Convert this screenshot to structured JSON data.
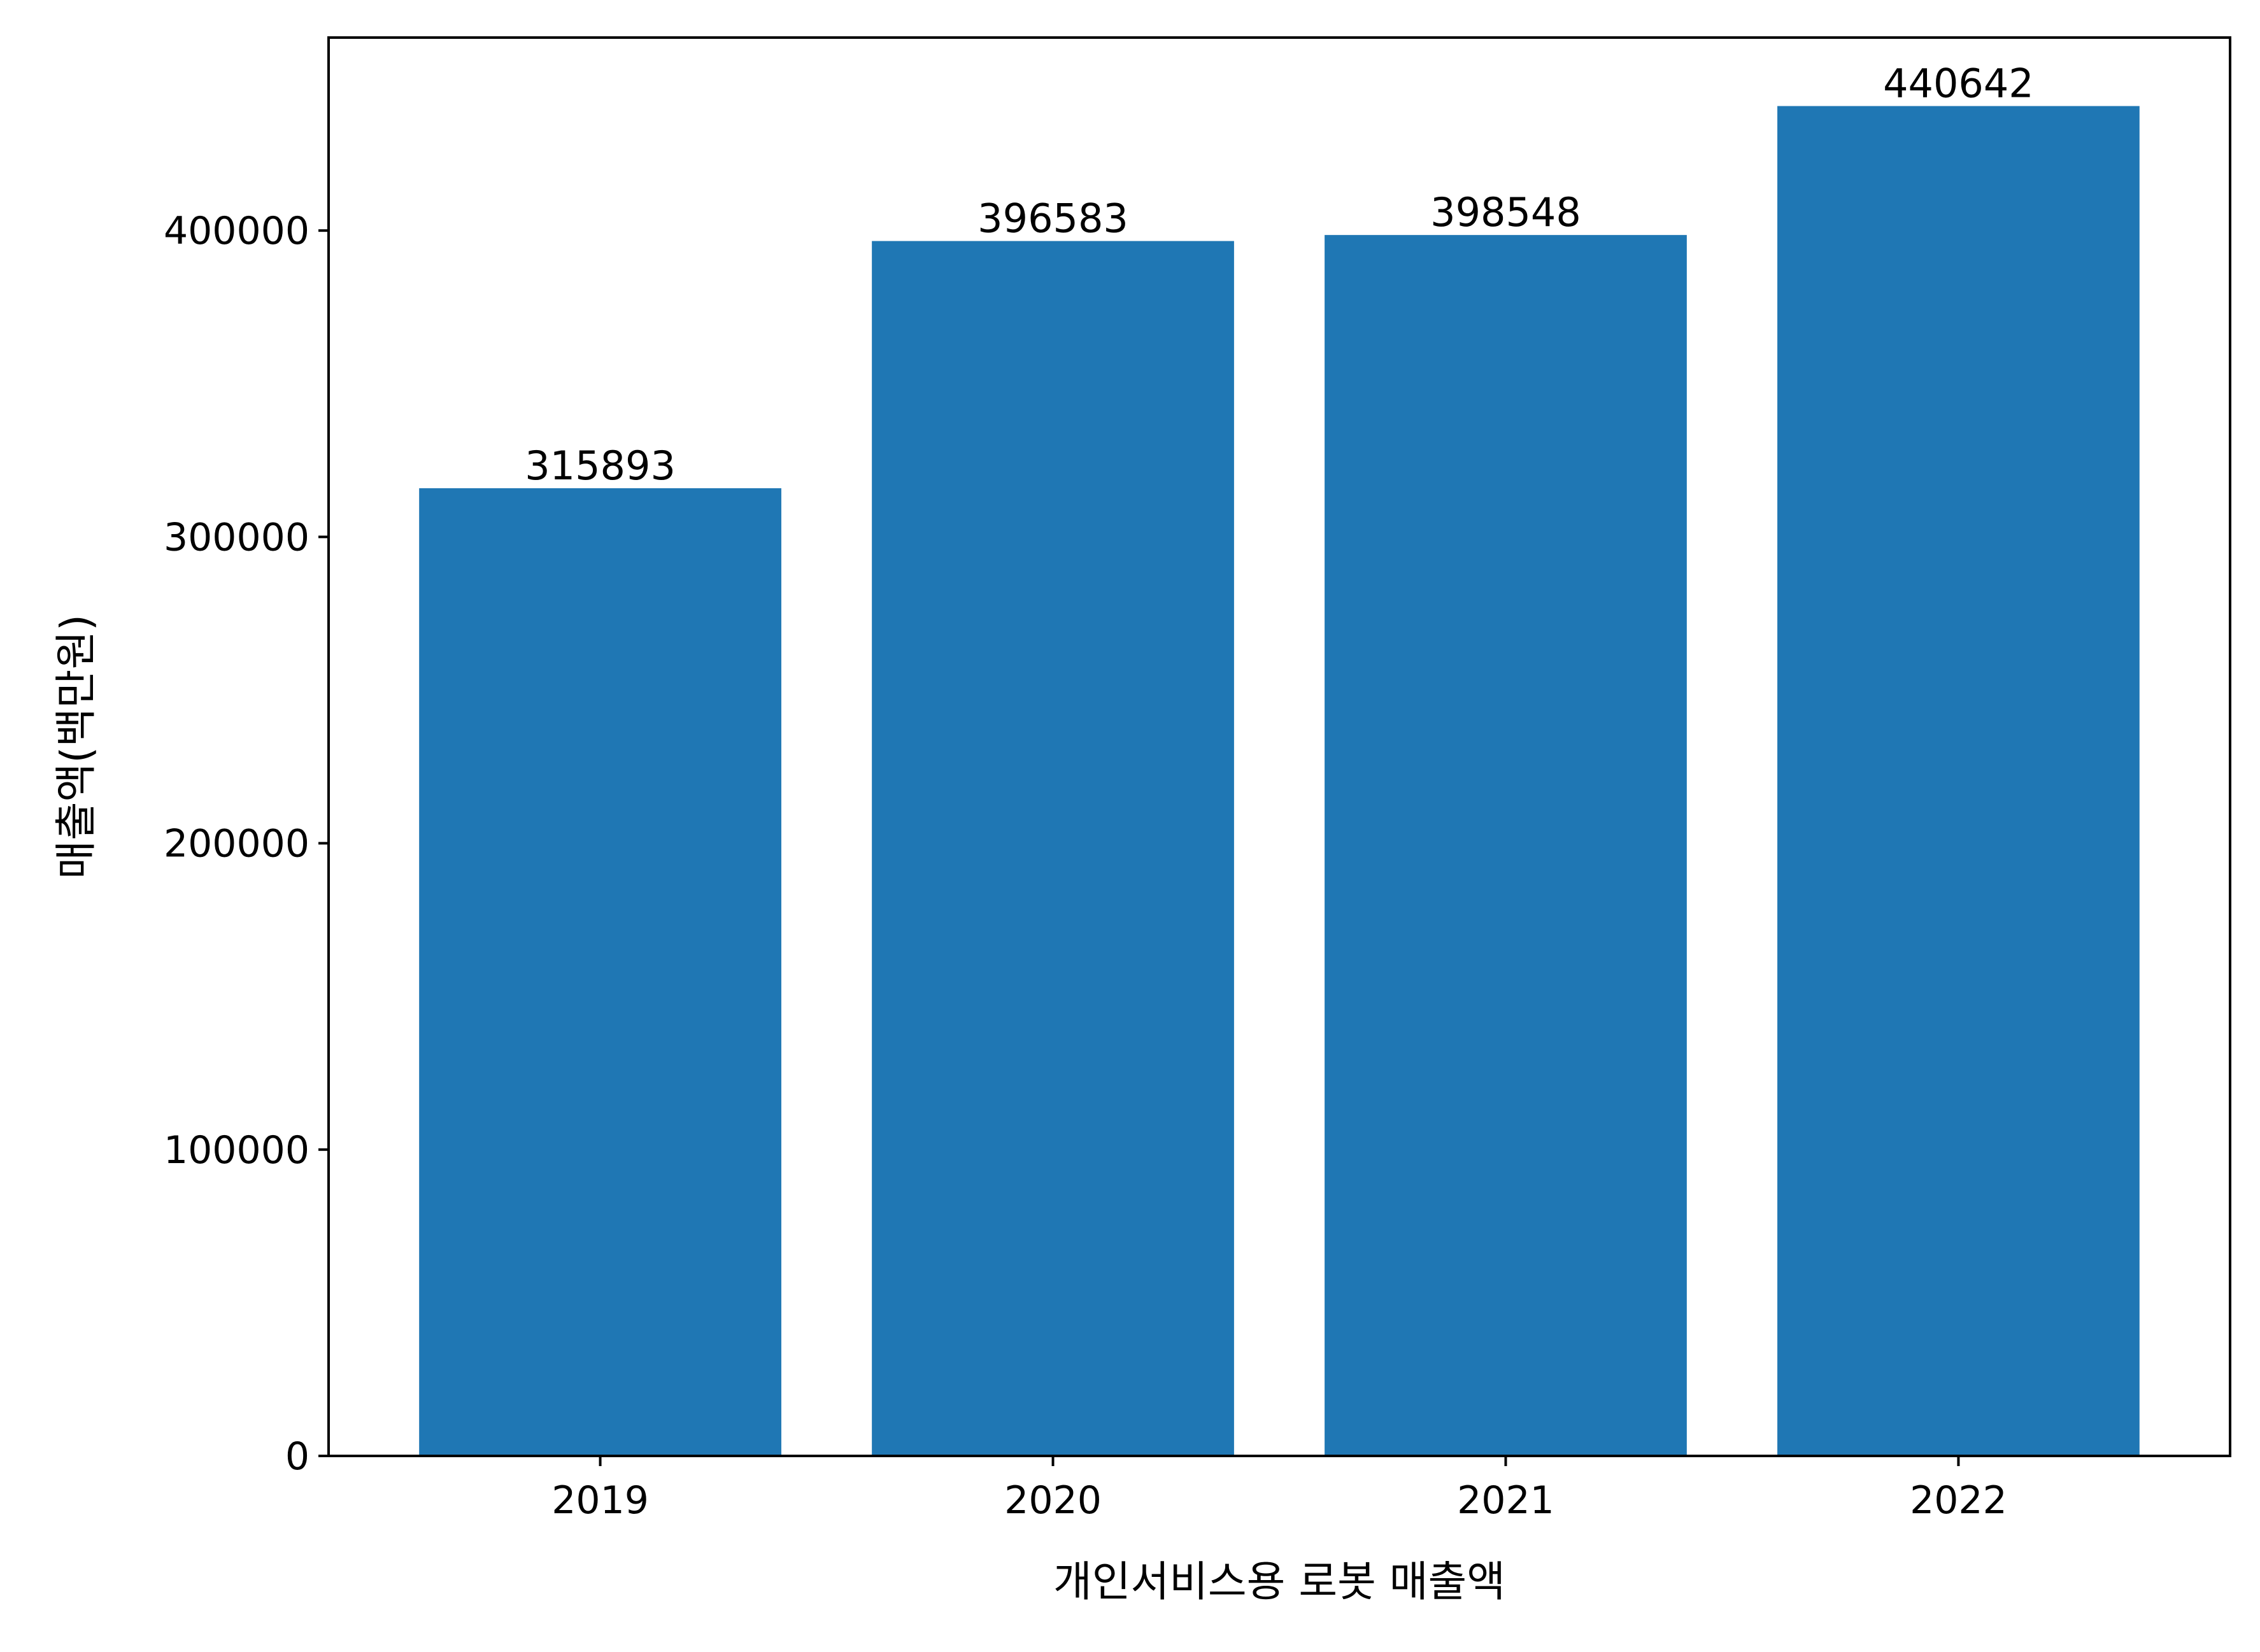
{
  "chart_data": {
    "type": "bar",
    "categories": [
      "2019",
      "2020",
      "2021",
      "2022"
    ],
    "values": [
      315893,
      396583,
      398548,
      440642
    ],
    "data_labels": [
      "315893",
      "396583",
      "398548",
      "440642"
    ],
    "title": "",
    "xlabel": "개인서비스용 로봇 매출액",
    "ylabel": "매출액(백만원)",
    "ylim": [
      0,
      463000
    ],
    "yticks": [
      0,
      100000,
      200000,
      300000,
      400000
    ],
    "ytick_labels": [
      "0",
      "100000",
      "200000",
      "300000",
      "400000"
    ],
    "grid": false,
    "legend": "none",
    "bar_color": "#1f77b4"
  }
}
